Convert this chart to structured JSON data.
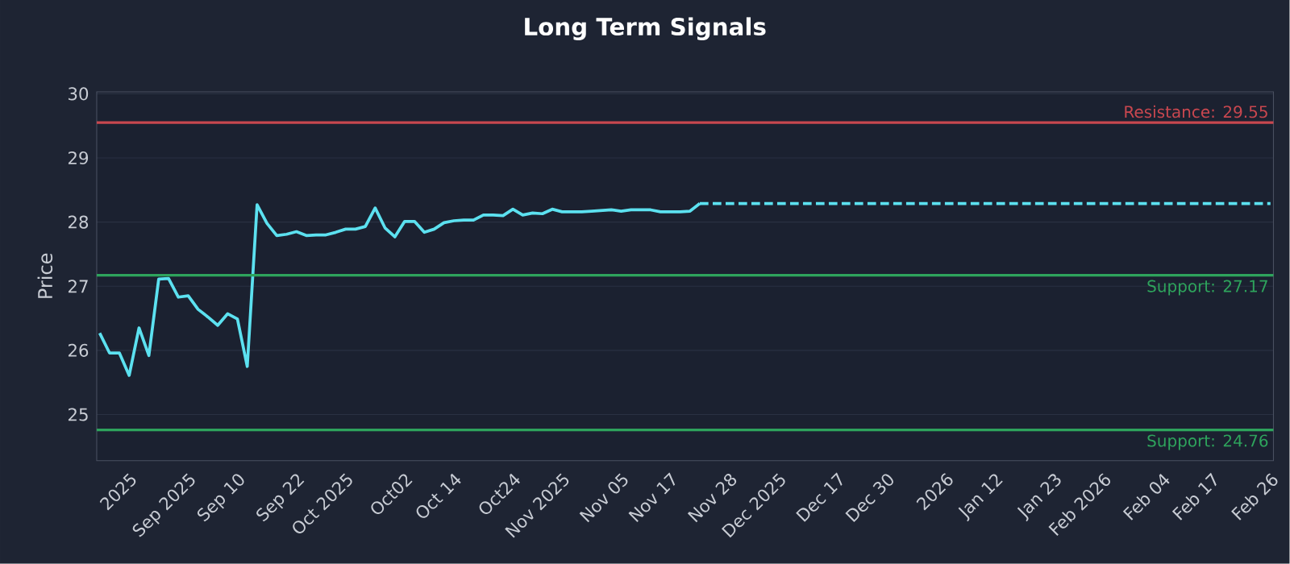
{
  "chart_data": {
    "type": "line",
    "title": "Long Term Signals",
    "ylabel": "Price",
    "categories": [
      null,
      null,
      null,
      "2025",
      null,
      null,
      null,
      null,
      null,
      "Sep 2025",
      null,
      null,
      null,
      null,
      "Sep 10",
      null,
      null,
      null,
      null,
      null,
      "Sep 22",
      null,
      null,
      null,
      null,
      "Oct 2025",
      null,
      null,
      null,
      null,
      null,
      "Oct02",
      null,
      null,
      null,
      null,
      "Oct 14",
      null,
      null,
      null,
      null,
      null,
      "Oct24",
      null,
      null,
      null,
      null,
      "Nov 2025",
      null,
      null,
      null,
      null,
      null,
      "Nov 05",
      null,
      null,
      null,
      null,
      "Nov 17",
      null,
      null,
      null,
      null,
      null,
      "Nov 28",
      null,
      null,
      null,
      null,
      "Dec 2025",
      null,
      null,
      null,
      null,
      null,
      "Dec 17",
      null,
      null,
      null,
      null,
      "Dec 30",
      null,
      null,
      null,
      null,
      null,
      "2026",
      null,
      null,
      null,
      null,
      "Jan 12",
      null,
      null,
      null,
      null,
      null,
      "Jan 23",
      null,
      null,
      null,
      null,
      "Feb 2026",
      null,
      null,
      null,
      null,
      null,
      "Feb 04",
      null,
      null,
      null,
      null,
      "Feb 17",
      null,
      null,
      null,
      null,
      null,
      "Feb 26"
    ],
    "series": [
      {
        "color": "#5ce1f0",
        "line_style": "solid",
        "values": [
          26.27,
          25.96,
          25.96,
          25.61,
          26.35,
          25.92,
          27.11,
          27.12,
          26.83,
          26.85,
          26.64,
          26.52,
          26.39,
          26.57,
          26.49,
          25.75,
          28.27,
          27.98,
          27.79,
          27.81,
          27.85,
          27.79,
          27.8,
          27.8,
          27.84,
          27.89,
          27.89,
          27.93,
          28.22,
          27.91,
          27.77,
          28.01,
          28.01,
          27.84,
          27.89,
          27.99,
          28.02,
          28.03,
          28.03,
          28.11,
          28.11,
          28.1,
          28.2,
          28.11,
          28.14,
          28.13,
          28.2,
          28.16,
          28.16,
          28.16,
          28.17,
          28.18,
          28.19,
          28.17,
          28.19,
          28.19,
          28.19,
          28.16,
          28.16,
          28.16,
          28.17,
          28.29,
          null,
          null,
          null,
          null,
          null,
          null,
          null,
          null,
          null,
          null,
          null,
          null,
          null,
          null,
          null,
          null,
          null,
          null,
          null,
          null,
          null,
          null,
          null,
          null,
          null,
          null,
          null,
          null,
          null,
          null,
          null,
          null,
          null,
          null,
          null,
          null,
          null,
          null,
          null,
          null,
          null,
          null,
          null,
          null,
          null,
          null,
          null,
          null,
          null,
          null,
          null,
          null,
          null,
          null,
          null,
          null,
          null,
          null
        ]
      },
      {
        "color": "#5ce1f0",
        "line_style": "dashed",
        "values": [
          null,
          null,
          null,
          null,
          null,
          null,
          null,
          null,
          null,
          null,
          null,
          null,
          null,
          null,
          null,
          null,
          null,
          null,
          null,
          null,
          null,
          null,
          null,
          null,
          null,
          null,
          null,
          null,
          null,
          null,
          null,
          null,
          null,
          null,
          null,
          null,
          null,
          null,
          null,
          null,
          null,
          null,
          null,
          null,
          null,
          null,
          null,
          null,
          null,
          null,
          null,
          null,
          null,
          null,
          null,
          null,
          null,
          null,
          null,
          null,
          null,
          28.29,
          28.29,
          28.29,
          28.29,
          28.29,
          28.29,
          28.29,
          28.29,
          28.29,
          28.29,
          28.29,
          28.29,
          28.29,
          28.29,
          28.29,
          28.29,
          28.29,
          28.29,
          28.29,
          28.29,
          28.29,
          28.29,
          28.29,
          28.29,
          28.29,
          28.29,
          28.29,
          28.29,
          28.29,
          28.29,
          28.29,
          28.29,
          28.29,
          28.29,
          28.29,
          28.29,
          28.29,
          28.29,
          28.29,
          28.29,
          28.29,
          28.29,
          28.29,
          28.29,
          28.29,
          28.29,
          28.29,
          28.29,
          28.29,
          28.29,
          28.29,
          28.29,
          28.29,
          28.29,
          28.29,
          28.29,
          28.29,
          28.29,
          28.29
        ]
      }
    ],
    "ylim": [
      24.28,
      30.03
    ],
    "yticks": [
      25,
      26,
      27,
      28,
      29,
      30
    ],
    "grid": "y",
    "marker": "none",
    "ref_lines": [
      {
        "axis": "y",
        "value": 29.55,
        "label": "Resistance: 29.55",
        "color": "#c8474f"
      },
      {
        "axis": "y",
        "value": 27.17,
        "label": "Support: 27.17",
        "color": "#2ea35c"
      },
      {
        "axis": "y",
        "value": 24.76,
        "label": "Support: 24.76",
        "color": "#2ea35c"
      }
    ]
  }
}
